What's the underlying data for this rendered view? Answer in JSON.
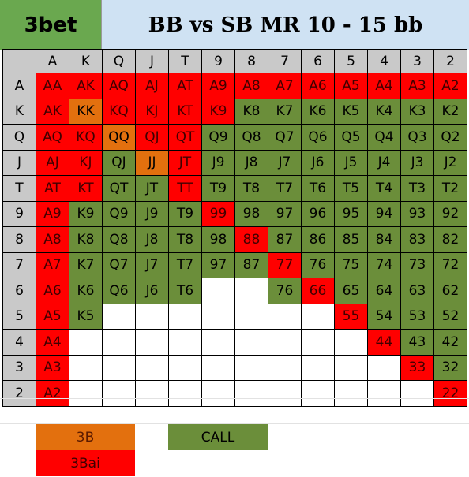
{
  "title_left": "3bet",
  "title_right": "BB vs SB MR 10 - 15 bb",
  "colors": {
    "3bai": "#ff0000",
    "3b": "#e3700e",
    "call": "#6b8e3a",
    "header": "#c9c9c9",
    "title_left_bg": "#6aa84f",
    "title_right_bg": "#cfe2f3"
  },
  "ranks": [
    "A",
    "K",
    "Q",
    "J",
    "T",
    "9",
    "8",
    "7",
    "6",
    "5",
    "4",
    "3",
    "2"
  ],
  "matrix": [
    [
      "3bai",
      "3bai",
      "3bai",
      "3bai",
      "3bai",
      "3bai",
      "3bai",
      "3bai",
      "3bai",
      "3bai",
      "3bai",
      "3bai",
      "3bai"
    ],
    [
      "3bai",
      "3b",
      "3bai",
      "3bai",
      "3bai",
      "3bai",
      "call",
      "call",
      "call",
      "call",
      "call",
      "call",
      "call"
    ],
    [
      "3bai",
      "3bai",
      "3b",
      "3bai",
      "3bai",
      "call",
      "call",
      "call",
      "call",
      "call",
      "call",
      "call",
      "call"
    ],
    [
      "3bai",
      "3bai",
      "call",
      "3b",
      "3bai",
      "call",
      "call",
      "call",
      "call",
      "call",
      "call",
      "call",
      "call"
    ],
    [
      "3bai",
      "3bai",
      "call",
      "call",
      "3bai",
      "call",
      "call",
      "call",
      "call",
      "call",
      "call",
      "call",
      "call"
    ],
    [
      "3bai",
      "call",
      "call",
      "call",
      "call",
      "3bai",
      "call",
      "call",
      "call",
      "call",
      "call",
      "call",
      "call"
    ],
    [
      "3bai",
      "call",
      "call",
      "call",
      "call",
      "call",
      "3bai",
      "call",
      "call",
      "call",
      "call",
      "call",
      "call"
    ],
    [
      "3bai",
      "call",
      "call",
      "call",
      "call",
      "call",
      "call",
      "3bai",
      "call",
      "call",
      "call",
      "call",
      "call"
    ],
    [
      "3bai",
      "call",
      "call",
      "call",
      "call",
      "empty",
      "empty",
      "call",
      "3bai",
      "call",
      "call",
      "call",
      "call"
    ],
    [
      "3bai",
      "call",
      "empty",
      "empty",
      "empty",
      "empty",
      "empty",
      "empty",
      "empty",
      "3bai",
      "call",
      "call",
      "call"
    ],
    [
      "3bai",
      "empty",
      "empty",
      "empty",
      "empty",
      "empty",
      "empty",
      "empty",
      "empty",
      "empty",
      "3bai",
      "call",
      "call"
    ],
    [
      "3bai",
      "empty",
      "empty",
      "empty",
      "empty",
      "empty",
      "empty",
      "empty",
      "empty",
      "empty",
      "empty",
      "3bai",
      "call"
    ],
    [
      "3bai",
      "empty",
      "empty",
      "empty",
      "empty",
      "empty",
      "empty",
      "empty",
      "empty",
      "empty",
      "empty",
      "empty",
      "3bai"
    ]
  ],
  "legend": {
    "3b": "3B",
    "3bai": "3Bai",
    "call": "CALL"
  }
}
